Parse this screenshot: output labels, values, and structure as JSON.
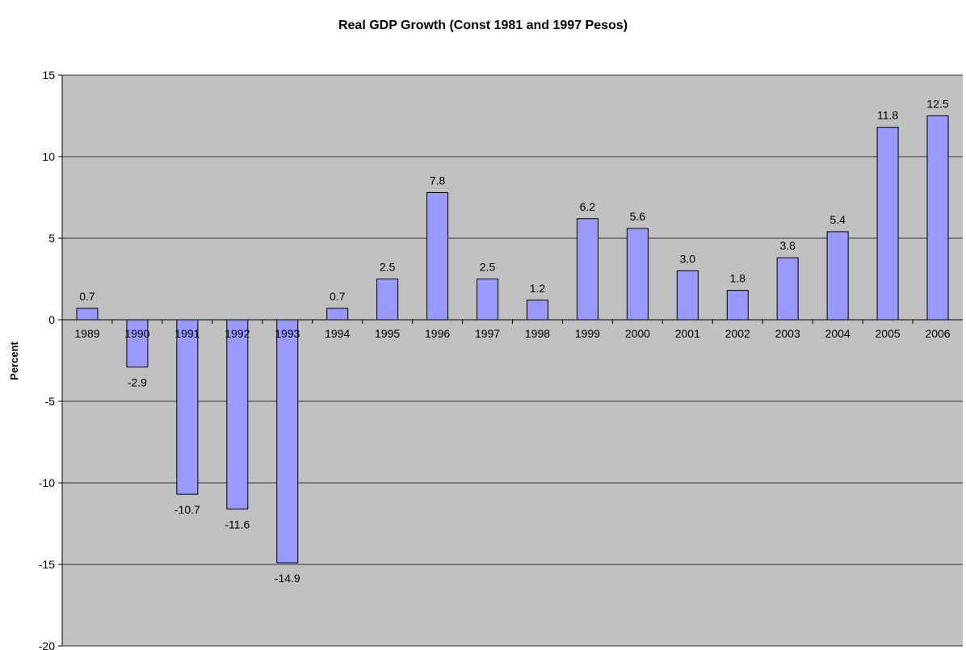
{
  "chart_data": {
    "type": "bar",
    "title": "Real GDP Growth (Const 1981 and 1997 Pesos)",
    "xlabel": "",
    "ylabel": "Percent",
    "categories": [
      "1989",
      "1990",
      "1991",
      "1992",
      "1993",
      "1994",
      "1995",
      "1996",
      "1997",
      "1998",
      "1999",
      "2000",
      "2001",
      "2002",
      "2003",
      "2004",
      "2005",
      "2006"
    ],
    "values": [
      0.7,
      -2.9,
      -10.7,
      -11.6,
      -14.9,
      0.7,
      2.5,
      7.8,
      2.5,
      1.2,
      6.2,
      5.6,
      3.0,
      1.8,
      3.8,
      5.4,
      11.8,
      12.5
    ],
    "data_labels": [
      "0.7",
      "-2.9",
      "-10.7",
      "-11.6",
      "-14.9",
      "0.7",
      "2.5",
      "7.8",
      "2.5",
      "1.2",
      "6.2",
      "5.6",
      "3.0",
      "1.8",
      "3.8",
      "5.4",
      "11.8",
      "12.5"
    ],
    "ylim": [
      -20,
      15
    ],
    "yticks": [
      15,
      10,
      5,
      0,
      -5,
      -10,
      -15,
      -20
    ],
    "ytick_labels": [
      "15",
      "10",
      "5",
      "0",
      "-5",
      "-10",
      "-15",
      "-20"
    ],
    "grid": true,
    "legend": "none",
    "colors": {
      "bar_fill": "#9999ff",
      "bar_stroke": "#000000",
      "plot_background": "#c0c0c0",
      "gridline": "#000000"
    }
  }
}
